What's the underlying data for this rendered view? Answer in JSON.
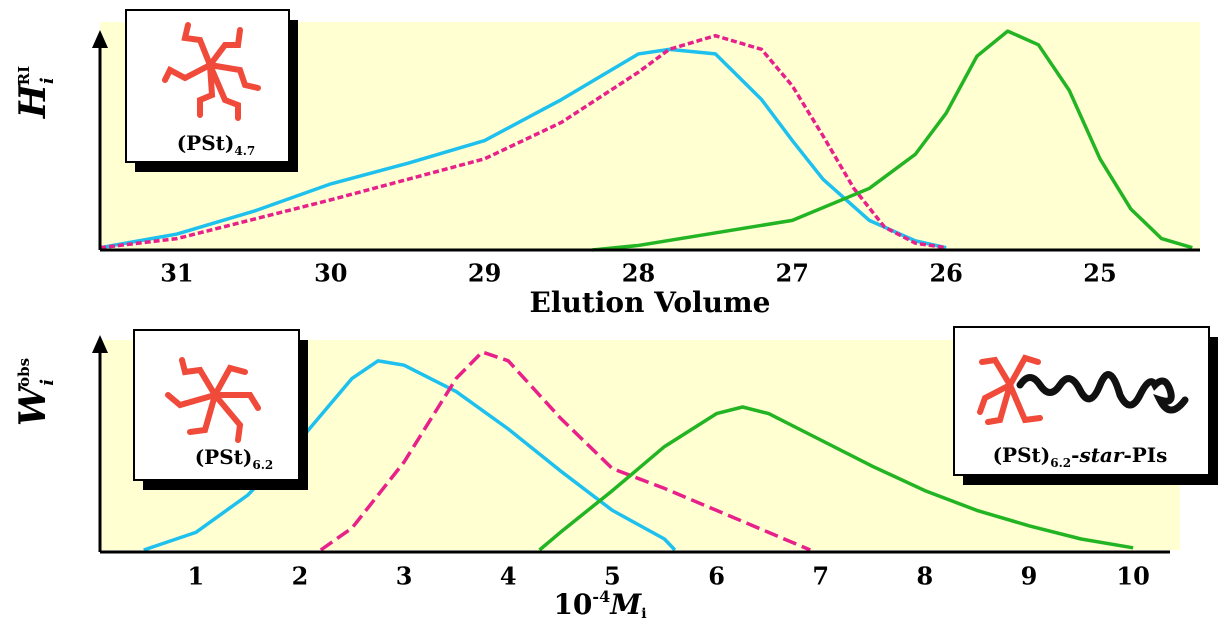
{
  "chart_data": [
    {
      "type": "line",
      "xlabel": "Elution Volume",
      "ylabel": {
        "text": "H",
        "sub": "i",
        "sup": "RI"
      },
      "xlim": [
        31.5,
        24.35
      ],
      "ylim": [
        0,
        1
      ],
      "xticks": [
        31,
        30,
        29,
        28,
        27,
        26,
        25
      ],
      "series": [
        {
          "color": "#1ec0ee",
          "linestyle": "solid",
          "x": [
            31.5,
            31,
            30.5,
            30,
            29.5,
            29,
            28.5,
            28.2,
            28,
            27.8,
            27.5,
            27.2,
            27,
            26.8,
            26.5,
            26.2,
            26
          ],
          "values": [
            0.01,
            0.07,
            0.17,
            0.29,
            0.38,
            0.48,
            0.66,
            0.78,
            0.86,
            0.88,
            0.86,
            0.66,
            0.48,
            0.31,
            0.13,
            0.04,
            0.01
          ]
        },
        {
          "color": "#e8208a",
          "linestyle": "dashed",
          "x": [
            31.5,
            31,
            30,
            29,
            28.5,
            28,
            27.8,
            27.5,
            27.2,
            27,
            26.8,
            26.6,
            26.4,
            26.2,
            26
          ],
          "values": [
            0.01,
            0.05,
            0.22,
            0.4,
            0.56,
            0.78,
            0.88,
            0.94,
            0.88,
            0.72,
            0.5,
            0.27,
            0.1,
            0.03,
            0.01
          ]
        },
        {
          "color": "#22b422",
          "linestyle": "solid",
          "x": [
            28.3,
            28,
            27,
            26.5,
            26.2,
            26,
            25.8,
            25.6,
            25.4,
            25.2,
            25,
            24.8,
            24.6,
            24.4
          ],
          "values": [
            0,
            0.02,
            0.13,
            0.27,
            0.42,
            0.6,
            0.85,
            0.96,
            0.9,
            0.7,
            0.4,
            0.18,
            0.05,
            0.01
          ]
        }
      ],
      "annotations": [
        {
          "text": "(PSt)",
          "sub": "4.7"
        }
      ]
    },
    {
      "type": "line",
      "xlabel": {
        "text": "10",
        "sup": "-4",
        "var": "M",
        "sub": "i"
      },
      "ylabel": {
        "text": "W",
        "sub": "i",
        "sup": "obs"
      },
      "xlim": [
        0.08,
        10.45
      ],
      "ylim": [
        0,
        1
      ],
      "xticks": [
        1,
        2,
        3,
        4,
        5,
        6,
        7,
        8,
        9,
        10
      ],
      "series": [
        {
          "color": "#1ec0ee",
          "linestyle": "solid",
          "x": [
            0.5,
            1,
            1.5,
            2,
            2.5,
            2.75,
            3,
            3.5,
            4,
            4.5,
            5,
            5.5,
            5.6
          ],
          "values": [
            0,
            0.08,
            0.25,
            0.5,
            0.78,
            0.86,
            0.84,
            0.72,
            0.55,
            0.36,
            0.18,
            0.05,
            0
          ]
        },
        {
          "color": "#e8208a",
          "linestyle": "dashed",
          "x": [
            2.2,
            2.5,
            3,
            3.5,
            3.75,
            4,
            4.5,
            5,
            5.5,
            6,
            6.5,
            6.9
          ],
          "values": [
            0,
            0.1,
            0.4,
            0.78,
            0.9,
            0.86,
            0.6,
            0.37,
            0.28,
            0.18,
            0.08,
            0
          ]
        },
        {
          "color": "#22b422",
          "linestyle": "solid",
          "x": [
            4.3,
            4.5,
            5,
            5.5,
            6,
            6.25,
            6.5,
            7,
            7.5,
            8,
            8.5,
            9,
            9.5,
            10
          ],
          "values": [
            0,
            0.08,
            0.27,
            0.47,
            0.62,
            0.65,
            0.62,
            0.5,
            0.38,
            0.27,
            0.18,
            0.11,
            0.05,
            0.01
          ]
        }
      ],
      "annotations": [
        {
          "text": "(PSt)",
          "sub": "6.2"
        },
        {
          "text": "(PSt)",
          "sub": "6.2",
          "prefix": "-",
          "italic": "star",
          "suffix": "-PIs"
        }
      ]
    }
  ]
}
